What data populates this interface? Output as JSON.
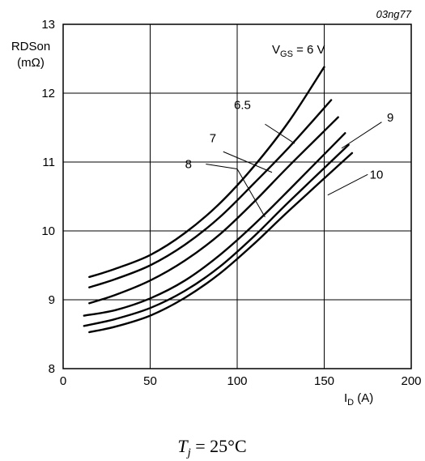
{
  "chart_data": {
    "type": "line",
    "figure_id": "03ng77",
    "ylabel_line1": "RDSon",
    "ylabel_line2": "(mΩ)",
    "xlabel": {
      "main": "I",
      "sub": "D",
      "unit": " (A)"
    },
    "xlim": [
      0,
      200
    ],
    "ylim": [
      8,
      13
    ],
    "x_ticks": [
      "0",
      "50",
      "100",
      "150",
      "200"
    ],
    "y_ticks": [
      "8",
      "9",
      "10",
      "11",
      "12",
      "13"
    ],
    "grid": true,
    "vgs_label": {
      "main": "V",
      "sub": "GS",
      "rest": " = 6 V"
    },
    "caption": {
      "main": "T",
      "sub": "j",
      "rest": " = 25°C"
    },
    "series": [
      {
        "name": "6",
        "x": [
          15,
          30,
          50,
          70,
          90,
          110,
          130,
          150
        ],
        "y": [
          9.33,
          9.45,
          9.65,
          9.97,
          10.4,
          10.95,
          11.6,
          12.38
        ]
      },
      {
        "name": "6.5",
        "x": [
          15,
          30,
          50,
          70,
          90,
          110,
          130,
          154
        ],
        "y": [
          9.18,
          9.3,
          9.5,
          9.8,
          10.2,
          10.7,
          11.22,
          11.9
        ]
      },
      {
        "name": "7",
        "x": [
          15,
          30,
          50,
          70,
          90,
          110,
          130,
          158
        ],
        "y": [
          8.95,
          9.07,
          9.28,
          9.57,
          9.95,
          10.43,
          10.95,
          11.65
        ]
      },
      {
        "name": "8",
        "x": [
          12,
          30,
          50,
          70,
          90,
          110,
          130,
          162
        ],
        "y": [
          8.77,
          8.85,
          9.02,
          9.28,
          9.65,
          10.1,
          10.6,
          11.42
        ]
      },
      {
        "name": "9",
        "x": [
          12,
          30,
          50,
          70,
          90,
          110,
          130,
          164
        ],
        "y": [
          8.62,
          8.72,
          8.88,
          9.13,
          9.48,
          9.93,
          10.43,
          11.25
        ]
      },
      {
        "name": "10",
        "x": [
          15,
          30,
          50,
          70,
          90,
          110,
          130,
          166
        ],
        "y": [
          8.53,
          8.61,
          8.77,
          9.03,
          9.38,
          9.82,
          10.3,
          11.13
        ]
      }
    ],
    "annotations": [
      {
        "text": "6.5",
        "text_at": [
          103,
          11.83
        ],
        "line_from": [
          116,
          11.55
        ],
        "line_to": [
          133,
          11.27
        ]
      },
      {
        "text": "7",
        "text_at": [
          86,
          11.35
        ],
        "line_from": [
          92,
          11.15
        ],
        "line_to": [
          120,
          10.85
        ]
      },
      {
        "text": "8",
        "text_at": [
          72,
          10.97
        ],
        "line_from": [
          82,
          10.97
        ],
        "line_to": [
          100,
          10.9
        ],
        "line2_to": [
          116,
          10.2
        ]
      },
      {
        "text": "9",
        "text_at": [
          188,
          11.65
        ],
        "line_from": [
          183,
          11.58
        ],
        "line_to": [
          160,
          11.2
        ]
      },
      {
        "text": "10",
        "text_at": [
          180,
          10.82
        ],
        "line_from": [
          175,
          10.82
        ],
        "line_to": [
          152,
          10.52
        ]
      }
    ]
  }
}
